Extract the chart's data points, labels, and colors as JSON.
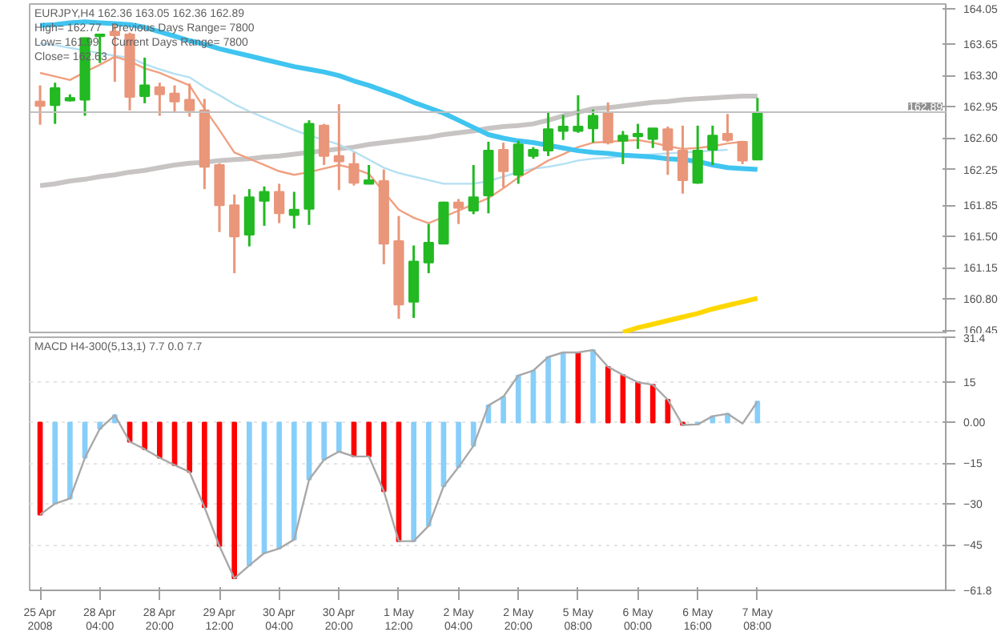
{
  "chart_data": [
    {
      "type": "candlestick",
      "categories": [
        null,
        null,
        null,
        null,
        null,
        null,
        null,
        null,
        null,
        null,
        null,
        null,
        null,
        null,
        null,
        null,
        null,
        null,
        null,
        null,
        null,
        null,
        null,
        null,
        null,
        null,
        null,
        null,
        null,
        null,
        null,
        null,
        null,
        null,
        null,
        null,
        null,
        null,
        null,
        null,
        null,
        null,
        null,
        null,
        null,
        null,
        null,
        null,
        null
      ],
      "ohlc": [
        [
          163.01,
          163.19,
          162.75,
          162.96
        ],
        [
          162.97,
          163.22,
          162.76,
          163.16
        ],
        [
          163.02,
          163.09,
          163.01,
          163.05
        ],
        [
          163.03,
          163.72,
          162.85,
          163.72
        ],
        [
          163.74,
          163.76,
          163.44,
          163.76
        ],
        [
          163.79,
          163.87,
          163.23,
          163.75
        ],
        [
          163.76,
          163.78,
          162.91,
          163.06
        ],
        [
          163.07,
          163.5,
          162.99,
          163.19
        ],
        [
          163.17,
          163.22,
          162.85,
          163.09
        ],
        [
          163.1,
          163.19,
          162.9,
          163.01
        ],
        [
          163.03,
          163.21,
          162.84,
          162.91
        ],
        [
          162.91,
          163.04,
          162.03,
          162.28
        ],
        [
          162.3,
          162.32,
          161.55,
          161.85
        ],
        [
          161.85,
          161.97,
          161.09,
          161.5
        ],
        [
          161.52,
          162.03,
          161.39,
          161.94
        ],
        [
          161.9,
          162.06,
          161.62,
          162.0
        ],
        [
          162.0,
          162.09,
          161.65,
          161.76
        ],
        [
          161.74,
          162.0,
          161.59,
          161.8
        ],
        [
          161.81,
          162.8,
          161.63,
          162.76
        ],
        [
          162.74,
          162.76,
          162.3,
          162.4
        ],
        [
          162.4,
          162.98,
          162.02,
          162.34
        ],
        [
          162.31,
          162.44,
          162.07,
          162.1
        ],
        [
          162.09,
          162.3,
          162.09,
          162.13
        ],
        [
          162.12,
          162.25,
          161.19,
          161.42
        ],
        [
          161.45,
          161.73,
          160.58,
          160.74
        ],
        [
          160.77,
          161.4,
          160.59,
          161.22
        ],
        [
          161.21,
          161.64,
          161.09,
          161.43
        ],
        [
          161.42,
          161.89,
          161.42,
          161.88
        ],
        [
          161.88,
          161.92,
          161.64,
          161.82
        ],
        [
          161.79,
          162.3,
          161.75,
          161.94
        ],
        [
          161.96,
          162.56,
          161.76,
          162.46
        ],
        [
          162.47,
          162.55,
          162.05,
          162.23
        ],
        [
          162.19,
          162.57,
          162.09,
          162.53
        ],
        [
          162.4,
          162.5,
          162.37,
          162.47
        ],
        [
          162.46,
          162.9,
          162.4,
          162.7
        ],
        [
          162.68,
          162.86,
          162.58,
          162.73
        ],
        [
          162.68,
          163.08,
          162.66,
          162.73
        ],
        [
          162.71,
          162.92,
          162.55,
          162.85
        ],
        [
          162.88,
          163.0,
          162.53,
          162.55
        ],
        [
          162.57,
          162.68,
          162.31,
          162.63
        ],
        [
          162.62,
          162.76,
          162.48,
          162.65
        ],
        [
          162.59,
          162.71,
          162.49,
          162.71
        ],
        [
          162.7,
          162.73,
          162.19,
          162.47
        ],
        [
          162.46,
          162.74,
          161.98,
          162.13
        ],
        [
          162.1,
          162.74,
          162.09,
          162.46
        ],
        [
          162.47,
          162.74,
          162.3,
          162.63
        ],
        [
          162.65,
          162.87,
          162.56,
          162.58
        ],
        [
          162.56,
          162.57,
          162.31,
          162.35
        ],
        [
          162.36,
          163.05,
          162.36,
          162.89
        ]
      ],
      "colors": [
        "#e9967a",
        "#22b922",
        "#22b922",
        "#22b922",
        "#22b922",
        "#e9967a",
        "#e9967a",
        "#22b922",
        "#e9967a",
        "#e9967a",
        "#e9967a",
        "#e9967a",
        "#e9967a",
        "#e9967a",
        "#22b922",
        "#22b922",
        "#e9967a",
        "#22b922",
        "#22b922",
        "#e9967a",
        "#e9967a",
        "#e9967a",
        "#22b922",
        "#e9967a",
        "#e9967a",
        "#22b922",
        "#22b922",
        "#22b922",
        "#e9967a",
        "#22b922",
        "#22b922",
        "#e9967a",
        "#22b922",
        "#22b922",
        "#22b922",
        "#22b922",
        "#22b922",
        "#22b922",
        "#e9967a",
        "#22b922",
        "#22b922",
        "#22b922",
        "#e9967a",
        "#e9967a",
        "#22b922",
        "#22b922",
        "#e9967a",
        "#e9967a",
        "#22b922"
      ],
      "series": [
        {
          "type": "line",
          "color": "#c8c4c4",
          "values": [
            162.07,
            162.09,
            162.12,
            162.14,
            162.17,
            162.19,
            162.22,
            162.24,
            162.27,
            162.3,
            162.32,
            162.33,
            162.35,
            162.36,
            162.37,
            162.39,
            162.4,
            162.42,
            162.44,
            162.46,
            162.48,
            162.5,
            162.53,
            162.55,
            162.57,
            162.59,
            162.61,
            162.64,
            162.66,
            162.68,
            162.71,
            162.73,
            162.74,
            162.76,
            162.8,
            162.85,
            162.89,
            162.93,
            162.94,
            162.96,
            162.98,
            163.0,
            163.01,
            163.03,
            163.04,
            163.05,
            163.06,
            163.07,
            163.07
          ]
        },
        {
          "type": "line",
          "color": "#b4e0f2",
          "values": [
            163.66,
            163.64,
            163.61,
            163.58,
            163.55,
            163.52,
            163.5,
            163.43,
            163.37,
            163.32,
            163.28,
            163.17,
            163.08,
            162.98,
            162.9,
            162.83,
            162.76,
            162.69,
            162.63,
            162.58,
            162.53,
            162.45,
            162.36,
            162.27,
            162.21,
            162.17,
            162.13,
            162.09,
            162.09,
            162.09,
            162.12,
            162.17,
            162.22,
            162.26,
            162.28,
            162.31,
            162.35,
            162.37,
            162.38,
            162.4,
            162.41,
            162.42,
            162.43,
            162.44,
            162.45,
            162.46,
            162.47,
            null,
            null
          ]
        },
        {
          "type": "line",
          "color": "#f0a080",
          "values": [
            163.33,
            163.29,
            163.25,
            163.34,
            163.42,
            163.51,
            163.46,
            163.38,
            163.33,
            163.26,
            163.19,
            162.93,
            162.69,
            162.44,
            162.37,
            162.3,
            162.23,
            162.19,
            162.22,
            162.26,
            162.3,
            162.26,
            162.2,
            162.0,
            161.8,
            161.71,
            161.65,
            161.72,
            161.79,
            161.86,
            161.93,
            162.04,
            162.16,
            162.25,
            162.35,
            162.42,
            162.5,
            162.55,
            162.56,
            162.57,
            162.58,
            162.55,
            162.51,
            162.48,
            162.49,
            162.51,
            162.54,
            162.56,
            null
          ]
        },
        {
          "type": "line",
          "color": "#40c4f0",
          "values": [
            163.86,
            163.87,
            163.89,
            163.9,
            163.89,
            163.88,
            163.87,
            163.84,
            163.79,
            163.74,
            163.69,
            163.65,
            163.6,
            163.56,
            163.52,
            163.48,
            163.44,
            163.4,
            163.37,
            163.34,
            163.3,
            163.24,
            163.19,
            163.13,
            163.07,
            163.0,
            162.94,
            162.88,
            162.8,
            162.72,
            162.64,
            162.6,
            162.57,
            162.55,
            162.52,
            162.49,
            162.46,
            162.44,
            162.43,
            162.41,
            162.4,
            162.39,
            162.37,
            162.36,
            162.34,
            162.3,
            162.27,
            162.26,
            162.25
          ]
        },
        {
          "type": "line",
          "color": "#ffd700",
          "values": [
            null,
            null,
            null,
            null,
            null,
            null,
            null,
            null,
            null,
            null,
            null,
            null,
            null,
            null,
            null,
            null,
            null,
            null,
            null,
            null,
            null,
            null,
            null,
            null,
            null,
            null,
            null,
            null,
            null,
            null,
            null,
            null,
            null,
            null,
            null,
            null,
            null,
            null,
            null,
            160.43,
            160.48,
            160.52,
            160.56,
            160.6,
            160.64,
            160.69,
            160.73,
            160.77,
            160.81
          ]
        }
      ],
      "ylim": [
        160.41,
        164.1
      ],
      "yticks": [
        164.05,
        163.65,
        {
          "value": 163.3,
          "label": "163.30"
        },
        162.95,
        {
          "value": 162.6,
          "label": "162.60"
        },
        162.25,
        161.85,
        {
          "value": 161.5,
          "label": "161.50"
        },
        161.15,
        {
          "value": 160.8,
          "label": "160.80"
        },
        160.45
      ],
      "ref_lines": [
        {
          "axis": "y",
          "value": 162.89,
          "label": "162.89",
          "color": "#c0c0c0"
        }
      ],
      "annotations": [
        "EURJPY,H4 162.36 163.05 162.36 162.89",
        "High= 162.77",
        "Previous Days Range= 7800",
        "Low= 161.99",
        "Current Days Range= 7800",
        "Close= 162.63"
      ]
    },
    {
      "type": "bar",
      "categories": [
        "25 Apr 2008",
        null,
        null,
        null,
        "28 Apr 04:00",
        null,
        null,
        null,
        "28 Apr 20:00",
        null,
        null,
        null,
        "29 Apr 12:00",
        null,
        null,
        null,
        "30 Apr 04:00",
        null,
        null,
        null,
        "30 Apr 20:00",
        null,
        null,
        null,
        "1 May 12:00",
        null,
        null,
        null,
        "2 May 04:00",
        null,
        null,
        null,
        "2 May 20:00",
        null,
        null,
        null,
        "5 May 08:00",
        null,
        null,
        null,
        "6 May 00:00",
        null,
        null,
        null,
        "6 May 16:00",
        null,
        null,
        null,
        "7 May 08:00"
      ],
      "series": [
        {
          "type": "bar",
          "values": [
            -33.9,
            -29.9,
            -28.0,
            -13.0,
            -2.3,
            2.7,
            -7.1,
            -9.8,
            -13.0,
            -15.7,
            -18.2,
            -31.2,
            -45.5,
            -57.4,
            -52.6,
            -48.1,
            -46.4,
            -43.1,
            -21.0,
            -13.7,
            -10.7,
            -12.5,
            -12.5,
            -25.3,
            -43.7,
            -43.7,
            -38.0,
            -23.5,
            -16.4,
            -8.6,
            6.3,
            9.5,
            17.3,
            19.1,
            24.1,
            25.8,
            25.8,
            26.7,
            20.5,
            17.5,
            14.8,
            13.9,
            8.4,
            -0.9,
            -0.7,
            2.3,
            3.2,
            null,
            7.7
          ],
          "colors": [
            "#ff0000",
            "#87cefa",
            "#87cefa",
            "#87cefa",
            "#87cefa",
            "#87cefa",
            "#ff0000",
            "#ff0000",
            "#ff0000",
            "#ff0000",
            "#ff0000",
            "#ff0000",
            "#ff0000",
            "#ff0000",
            "#87cefa",
            "#87cefa",
            "#87cefa",
            "#87cefa",
            "#87cefa",
            "#87cefa",
            "#87cefa",
            "#ff0000",
            "#ff0000",
            "#ff0000",
            "#ff0000",
            "#87cefa",
            "#87cefa",
            "#87cefa",
            "#87cefa",
            "#87cefa",
            "#87cefa",
            "#87cefa",
            "#87cefa",
            "#87cefa",
            "#87cefa",
            "#87cefa",
            "#ff0000",
            "#87cefa",
            "#ff0000",
            "#ff0000",
            "#ff0000",
            "#ff0000",
            "#ff0000",
            "#ff0000",
            "#87cefa",
            "#87cefa",
            "#87cefa",
            "#87cefa",
            "#87cefa"
          ]
        },
        {
          "type": "line",
          "color": "#a8a8a8",
          "values": [
            -33.9,
            -29.9,
            -28.0,
            -13.0,
            -2.3,
            2.7,
            -7.1,
            -9.8,
            -13.0,
            -15.7,
            -18.2,
            -31.2,
            -45.5,
            -57.4,
            -52.6,
            -48.1,
            -46.4,
            -43.1,
            -21.0,
            -13.7,
            -10.7,
            -12.5,
            -12.5,
            -25.3,
            -43.7,
            -43.7,
            -38.0,
            -23.5,
            -16.4,
            -8.6,
            6.3,
            9.5,
            17.3,
            19.1,
            24.1,
            25.8,
            25.8,
            26.7,
            20.5,
            17.5,
            14.8,
            13.9,
            8.4,
            -0.9,
            -0.7,
            2.3,
            3.2,
            -0.4,
            7.7
          ]
        }
      ],
      "ylim": [
        -61.8,
        31.4
      ],
      "yticks": [
        31.4,
        15,
        {
          "value": 0,
          "label": "0.00"
        },
        -15,
        -30,
        -45,
        -61.8
      ],
      "grid": "y",
      "annotations": [
        "MACD H4-300(5,13,1) 7.7 0.0 7.7"
      ]
    }
  ]
}
